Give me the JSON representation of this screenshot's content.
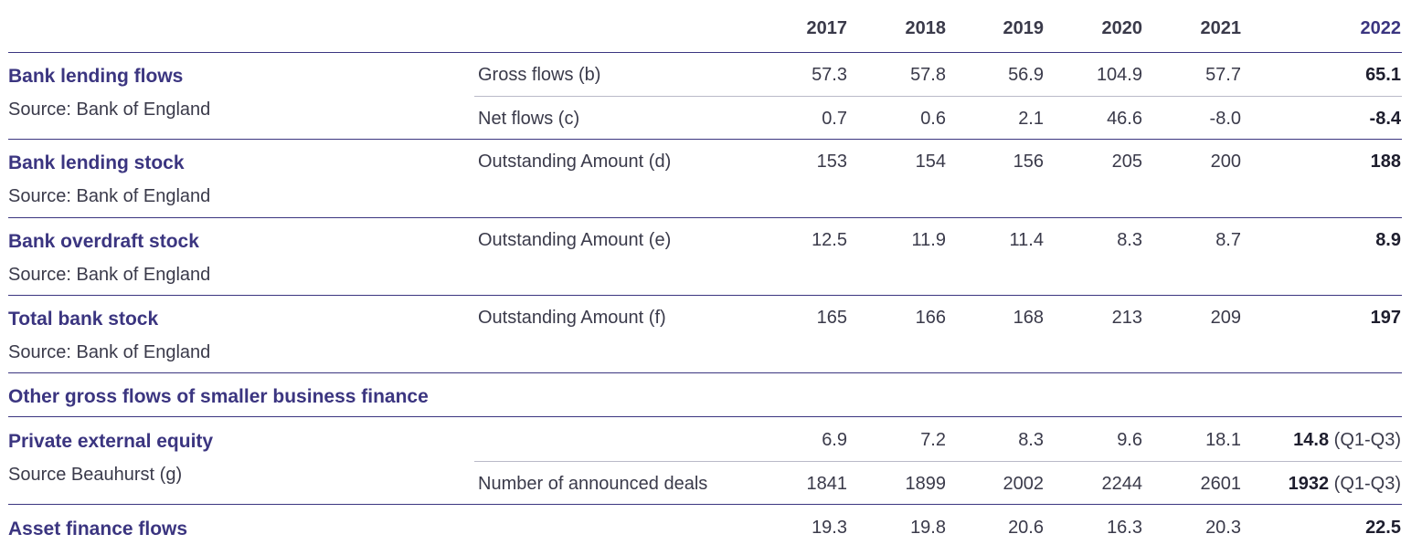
{
  "header": {
    "years": [
      "2017",
      "2018",
      "2019",
      "2020",
      "2021",
      "2022"
    ]
  },
  "rows": {
    "bank_lending_flows": {
      "label": "Bank lending flows",
      "source": "Source: Bank of England",
      "gross": {
        "label": "Gross flows (b)",
        "values": [
          "57.3",
          "57.8",
          "56.9",
          "104.9",
          "57.7",
          "65.1"
        ]
      },
      "net": {
        "label": "Net flows (c)",
        "values": [
          "0.7",
          "0.6",
          "2.1",
          "46.6",
          "-8.0",
          "-8.4"
        ]
      }
    },
    "bank_lending_stock": {
      "label": "Bank lending stock",
      "source": "Source: Bank of England",
      "outstanding": {
        "label": "Outstanding Amount (d)",
        "values": [
          "153",
          "154",
          "156",
          "205",
          "200",
          "188"
        ]
      }
    },
    "bank_overdraft_stock": {
      "label": "Bank overdraft stock",
      "source": "Source: Bank of England",
      "outstanding": {
        "label": "Outstanding Amount (e)",
        "values": [
          "12.5",
          "11.9",
          "11.4",
          "8.3",
          "8.7",
          "8.9"
        ]
      }
    },
    "total_bank_stock": {
      "label": "Total bank stock",
      "source": "Source: Bank of England",
      "outstanding": {
        "label": "Outstanding Amount (f)",
        "values": [
          "165",
          "166",
          "168",
          "213",
          "209",
          "197"
        ]
      }
    },
    "other_flows": {
      "label": "Other gross flows of smaller business finance"
    },
    "private_external_equity": {
      "label": "Private external equity",
      "source": "Source Beauhurst (g)",
      "amount": {
        "values": [
          "6.9",
          "7.2",
          "8.3",
          "9.6",
          "18.1",
          "14.8"
        ],
        "suffix": "(Q1-Q3)"
      },
      "deals": {
        "label": "Number of announced deals",
        "values": [
          "1841",
          "1899",
          "2002",
          "2244",
          "2601",
          "1932"
        ],
        "suffix": "(Q1-Q3)"
      }
    },
    "asset_finance_flows": {
      "label": "Asset finance flows",
      "amount": {
        "values": [
          "19.3",
          "19.8",
          "20.6",
          "16.3",
          "20.3",
          "22.5"
        ]
      }
    }
  }
}
